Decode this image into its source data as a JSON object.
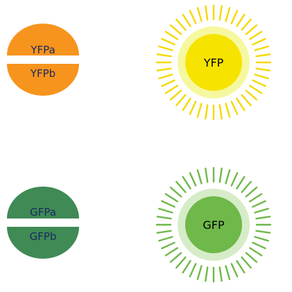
{
  "halves": [
    {
      "label": "YFPa",
      "color": "#f7941d",
      "text_color": "#1a2a5e"
    },
    {
      "label": "YFPb",
      "color": "#f7941d",
      "text_color": "#1a2a5e"
    },
    {
      "label": "GFPa",
      "color": "#3f8a55",
      "text_color": "#1a2a5e"
    },
    {
      "label": "GFPb",
      "color": "#3f8a55",
      "text_color": "#1a2a5e"
    }
  ],
  "proteins": [
    {
      "label": "YFP",
      "fill": "#f7e300",
      "ring": "#f6f8a0",
      "rays": "#f5d800",
      "text_color": "#000000"
    },
    {
      "label": "GFP",
      "fill": "#6fb84a",
      "ring": "#d6ecc8",
      "rays": "#6fb84a",
      "text_color": "#000000"
    }
  ]
}
